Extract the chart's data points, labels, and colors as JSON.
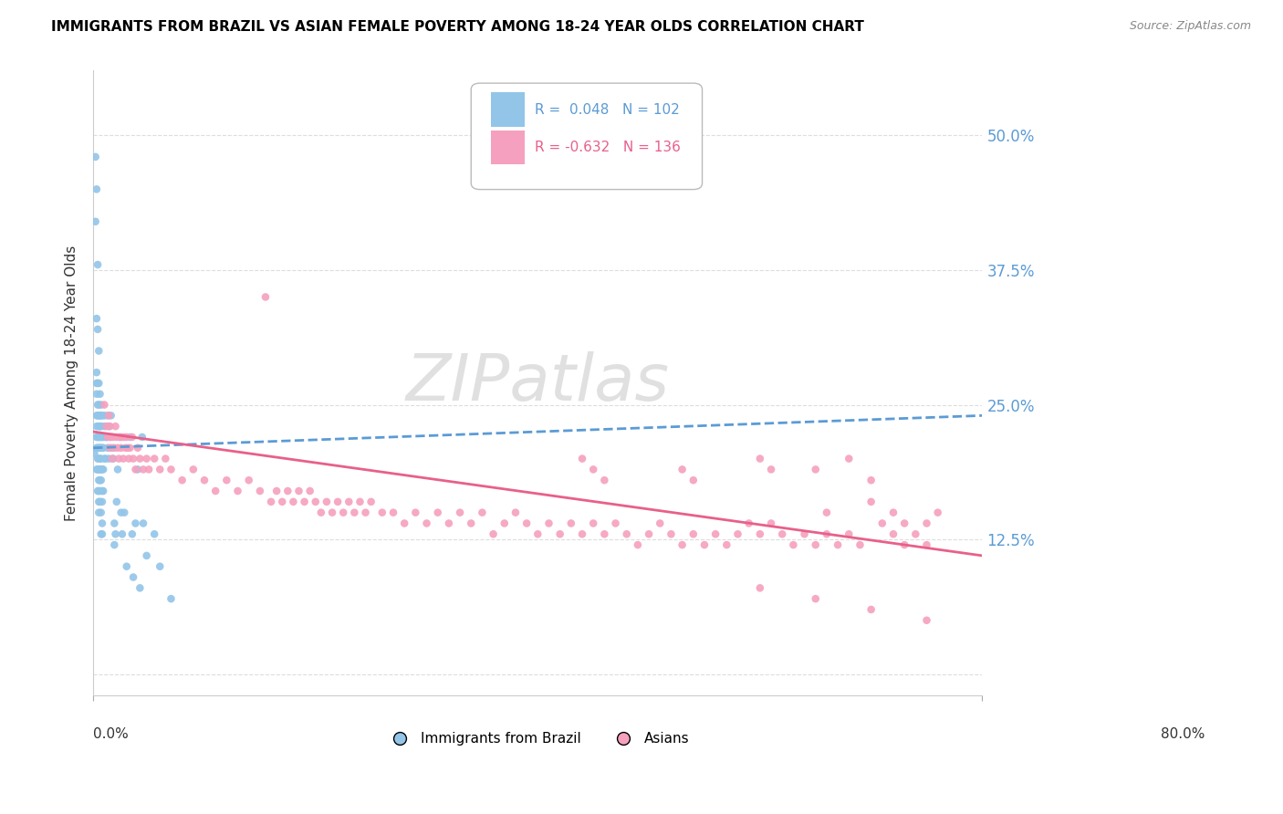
{
  "title": "IMMIGRANTS FROM BRAZIL VS ASIAN FEMALE POVERTY AMONG 18-24 YEAR OLDS CORRELATION CHART",
  "source": "Source: ZipAtlas.com",
  "ylabel": "Female Poverty Among 18-24 Year Olds",
  "ytick_labels": [
    "",
    "12.5%",
    "25.0%",
    "37.5%",
    "50.0%"
  ],
  "ytick_values": [
    0.0,
    0.125,
    0.25,
    0.375,
    0.5
  ],
  "xlim": [
    0.0,
    0.8
  ],
  "ylim": [
    -0.02,
    0.56
  ],
  "brazil_R": 0.048,
  "brazil_N": 102,
  "asian_R": -0.632,
  "asian_N": 136,
  "brazil_color": "#92C5E8",
  "asian_color": "#F5A0BE",
  "brazil_line_color": "#5B9BD5",
  "asian_line_color": "#E8608A",
  "legend_text_brazil_color": "#5B9BD5",
  "legend_text_asian_color": "#E8608A",
  "right_tick_color": "#5B9BD5",
  "watermark": "ZIPatlas",
  "brazil_scatter": [
    [
      0.001,
      0.205
    ],
    [
      0.002,
      0.48
    ],
    [
      0.002,
      0.42
    ],
    [
      0.003,
      0.45
    ],
    [
      0.003,
      0.33
    ],
    [
      0.003,
      0.28
    ],
    [
      0.003,
      0.27
    ],
    [
      0.003,
      0.26
    ],
    [
      0.003,
      0.24
    ],
    [
      0.003,
      0.23
    ],
    [
      0.003,
      0.22
    ],
    [
      0.003,
      0.21
    ],
    [
      0.003,
      0.19
    ],
    [
      0.004,
      0.38
    ],
    [
      0.004,
      0.32
    ],
    [
      0.004,
      0.27
    ],
    [
      0.004,
      0.25
    ],
    [
      0.004,
      0.24
    ],
    [
      0.004,
      0.22
    ],
    [
      0.004,
      0.21
    ],
    [
      0.004,
      0.2
    ],
    [
      0.004,
      0.19
    ],
    [
      0.004,
      0.17
    ],
    [
      0.005,
      0.3
    ],
    [
      0.005,
      0.27
    ],
    [
      0.005,
      0.25
    ],
    [
      0.005,
      0.24
    ],
    [
      0.005,
      0.23
    ],
    [
      0.005,
      0.22
    ],
    [
      0.005,
      0.21
    ],
    [
      0.005,
      0.2
    ],
    [
      0.005,
      0.19
    ],
    [
      0.005,
      0.18
    ],
    [
      0.005,
      0.17
    ],
    [
      0.005,
      0.16
    ],
    [
      0.005,
      0.15
    ],
    [
      0.006,
      0.26
    ],
    [
      0.006,
      0.24
    ],
    [
      0.006,
      0.23
    ],
    [
      0.006,
      0.22
    ],
    [
      0.006,
      0.21
    ],
    [
      0.006,
      0.2
    ],
    [
      0.006,
      0.19
    ],
    [
      0.006,
      0.18
    ],
    [
      0.006,
      0.17
    ],
    [
      0.006,
      0.16
    ],
    [
      0.007,
      0.25
    ],
    [
      0.007,
      0.24
    ],
    [
      0.007,
      0.23
    ],
    [
      0.007,
      0.22
    ],
    [
      0.007,
      0.21
    ],
    [
      0.007,
      0.2
    ],
    [
      0.007,
      0.19
    ],
    [
      0.007,
      0.18
    ],
    [
      0.007,
      0.15
    ],
    [
      0.007,
      0.13
    ],
    [
      0.008,
      0.24
    ],
    [
      0.008,
      0.22
    ],
    [
      0.008,
      0.21
    ],
    [
      0.008,
      0.19
    ],
    [
      0.008,
      0.17
    ],
    [
      0.008,
      0.16
    ],
    [
      0.008,
      0.14
    ],
    [
      0.008,
      0.13
    ],
    [
      0.009,
      0.22
    ],
    [
      0.009,
      0.21
    ],
    [
      0.009,
      0.19
    ],
    [
      0.009,
      0.17
    ],
    [
      0.01,
      0.24
    ],
    [
      0.01,
      0.23
    ],
    [
      0.01,
      0.2
    ],
    [
      0.011,
      0.22
    ],
    [
      0.011,
      0.2
    ],
    [
      0.012,
      0.22
    ],
    [
      0.013,
      0.24
    ],
    [
      0.013,
      0.21
    ],
    [
      0.014,
      0.23
    ],
    [
      0.014,
      0.2
    ],
    [
      0.015,
      0.22
    ],
    [
      0.016,
      0.24
    ],
    [
      0.017,
      0.21
    ],
    [
      0.018,
      0.2
    ],
    [
      0.019,
      0.14
    ],
    [
      0.019,
      0.12
    ],
    [
      0.02,
      0.13
    ],
    [
      0.021,
      0.16
    ],
    [
      0.022,
      0.19
    ],
    [
      0.024,
      0.22
    ],
    [
      0.025,
      0.15
    ],
    [
      0.026,
      0.13
    ],
    [
      0.028,
      0.15
    ],
    [
      0.03,
      0.1
    ],
    [
      0.033,
      0.22
    ],
    [
      0.035,
      0.13
    ],
    [
      0.036,
      0.09
    ],
    [
      0.038,
      0.14
    ],
    [
      0.04,
      0.19
    ],
    [
      0.042,
      0.08
    ],
    [
      0.044,
      0.22
    ],
    [
      0.045,
      0.14
    ],
    [
      0.048,
      0.11
    ],
    [
      0.055,
      0.13
    ],
    [
      0.06,
      0.1
    ],
    [
      0.07,
      0.07
    ]
  ],
  "asian_scatter": [
    [
      0.01,
      0.25
    ],
    [
      0.012,
      0.23
    ],
    [
      0.013,
      0.22
    ],
    [
      0.014,
      0.24
    ],
    [
      0.015,
      0.23
    ],
    [
      0.015,
      0.21
    ],
    [
      0.016,
      0.22
    ],
    [
      0.017,
      0.2
    ],
    [
      0.018,
      0.22
    ],
    [
      0.019,
      0.21
    ],
    [
      0.02,
      0.23
    ],
    [
      0.021,
      0.22
    ],
    [
      0.022,
      0.21
    ],
    [
      0.023,
      0.2
    ],
    [
      0.024,
      0.22
    ],
    [
      0.025,
      0.21
    ],
    [
      0.026,
      0.22
    ],
    [
      0.027,
      0.2
    ],
    [
      0.028,
      0.22
    ],
    [
      0.029,
      0.21
    ],
    [
      0.03,
      0.22
    ],
    [
      0.031,
      0.21
    ],
    [
      0.032,
      0.2
    ],
    [
      0.033,
      0.21
    ],
    [
      0.035,
      0.22
    ],
    [
      0.036,
      0.2
    ],
    [
      0.038,
      0.19
    ],
    [
      0.04,
      0.21
    ],
    [
      0.042,
      0.2
    ],
    [
      0.045,
      0.19
    ],
    [
      0.048,
      0.2
    ],
    [
      0.05,
      0.19
    ],
    [
      0.055,
      0.2
    ],
    [
      0.06,
      0.19
    ],
    [
      0.065,
      0.2
    ],
    [
      0.07,
      0.19
    ],
    [
      0.08,
      0.18
    ],
    [
      0.09,
      0.19
    ],
    [
      0.1,
      0.18
    ],
    [
      0.11,
      0.17
    ],
    [
      0.12,
      0.18
    ],
    [
      0.13,
      0.17
    ],
    [
      0.14,
      0.18
    ],
    [
      0.15,
      0.17
    ],
    [
      0.155,
      0.35
    ],
    [
      0.16,
      0.16
    ],
    [
      0.165,
      0.17
    ],
    [
      0.17,
      0.16
    ],
    [
      0.175,
      0.17
    ],
    [
      0.18,
      0.16
    ],
    [
      0.185,
      0.17
    ],
    [
      0.19,
      0.16
    ],
    [
      0.195,
      0.17
    ],
    [
      0.2,
      0.16
    ],
    [
      0.205,
      0.15
    ],
    [
      0.21,
      0.16
    ],
    [
      0.215,
      0.15
    ],
    [
      0.22,
      0.16
    ],
    [
      0.225,
      0.15
    ],
    [
      0.23,
      0.16
    ],
    [
      0.235,
      0.15
    ],
    [
      0.24,
      0.16
    ],
    [
      0.245,
      0.15
    ],
    [
      0.25,
      0.16
    ],
    [
      0.26,
      0.15
    ],
    [
      0.27,
      0.15
    ],
    [
      0.28,
      0.14
    ],
    [
      0.29,
      0.15
    ],
    [
      0.3,
      0.14
    ],
    [
      0.31,
      0.15
    ],
    [
      0.32,
      0.14
    ],
    [
      0.33,
      0.15
    ],
    [
      0.34,
      0.14
    ],
    [
      0.35,
      0.15
    ],
    [
      0.36,
      0.13
    ],
    [
      0.37,
      0.14
    ],
    [
      0.38,
      0.15
    ],
    [
      0.39,
      0.14
    ],
    [
      0.4,
      0.13
    ],
    [
      0.41,
      0.14
    ],
    [
      0.42,
      0.13
    ],
    [
      0.43,
      0.14
    ],
    [
      0.44,
      0.13
    ],
    [
      0.45,
      0.14
    ],
    [
      0.46,
      0.13
    ],
    [
      0.47,
      0.14
    ],
    [
      0.48,
      0.13
    ],
    [
      0.49,
      0.12
    ],
    [
      0.5,
      0.13
    ],
    [
      0.51,
      0.14
    ],
    [
      0.52,
      0.13
    ],
    [
      0.53,
      0.12
    ],
    [
      0.54,
      0.13
    ],
    [
      0.55,
      0.12
    ],
    [
      0.56,
      0.13
    ],
    [
      0.57,
      0.12
    ],
    [
      0.58,
      0.13
    ],
    [
      0.59,
      0.14
    ],
    [
      0.6,
      0.13
    ],
    [
      0.61,
      0.14
    ],
    [
      0.62,
      0.13
    ],
    [
      0.63,
      0.12
    ],
    [
      0.64,
      0.13
    ],
    [
      0.65,
      0.12
    ],
    [
      0.66,
      0.13
    ],
    [
      0.67,
      0.12
    ],
    [
      0.68,
      0.13
    ],
    [
      0.69,
      0.12
    ],
    [
      0.7,
      0.18
    ],
    [
      0.71,
      0.14
    ],
    [
      0.72,
      0.13
    ],
    [
      0.73,
      0.12
    ],
    [
      0.74,
      0.13
    ],
    [
      0.75,
      0.12
    ],
    [
      0.44,
      0.2
    ],
    [
      0.45,
      0.19
    ],
    [
      0.46,
      0.18
    ],
    [
      0.53,
      0.19
    ],
    [
      0.54,
      0.18
    ],
    [
      0.6,
      0.2
    ],
    [
      0.61,
      0.19
    ],
    [
      0.65,
      0.19
    ],
    [
      0.66,
      0.15
    ],
    [
      0.68,
      0.2
    ],
    [
      0.7,
      0.16
    ],
    [
      0.72,
      0.15
    ],
    [
      0.73,
      0.14
    ],
    [
      0.75,
      0.14
    ],
    [
      0.76,
      0.15
    ],
    [
      0.6,
      0.08
    ],
    [
      0.65,
      0.07
    ],
    [
      0.7,
      0.06
    ],
    [
      0.75,
      0.05
    ]
  ]
}
